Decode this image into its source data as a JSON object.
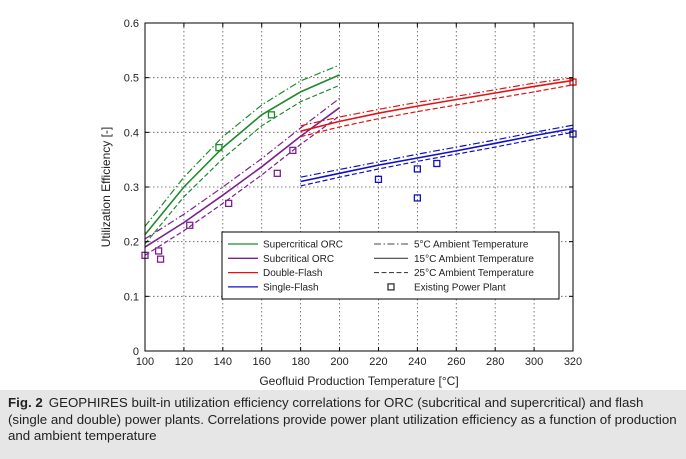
{
  "chart_data": {
    "type": "line",
    "xlabel": "Geofluid Production Temperature [°C]",
    "ylabel": "Utilization Efficiency [-]",
    "xlim": [
      100,
      320
    ],
    "ylim": [
      0,
      0.6
    ],
    "xticks": [
      "100",
      "120",
      "140",
      "160",
      "180",
      "200",
      "220",
      "240",
      "260",
      "280",
      "300",
      "320"
    ],
    "yticks": [
      "0",
      "0.1",
      "0.2",
      "0.3",
      "0.4",
      "0.5",
      "0.6"
    ],
    "grid": "dotted",
    "legend_position": "lower-center",
    "legend_left": [
      {
        "label": "Supercritical ORC",
        "color": "#1f8a2e"
      },
      {
        "label": "Subcritical ORC",
        "color": "#7d1f91"
      },
      {
        "label": "Double-Flash",
        "color": "#e01414"
      },
      {
        "label": "Single-Flash",
        "color": "#1010c8"
      }
    ],
    "legend_right": [
      {
        "label": "5°C Ambient Temperature",
        "style": "dashdot"
      },
      {
        "label": "15°C Ambient Temperature",
        "style": "solid"
      },
      {
        "label": "25°C Ambient Temperature",
        "style": "dashed"
      },
      {
        "label": "Existing Power Plant",
        "style": "marker"
      }
    ],
    "series": [
      {
        "name": "Supercritical ORC",
        "color": "#1f8a2e",
        "x": [
          100,
          120,
          140,
          160,
          180,
          200
        ],
        "y_5C": [
          0.228,
          0.318,
          0.392,
          0.45,
          0.494,
          0.523
        ],
        "y_15C": [
          0.213,
          0.3,
          0.372,
          0.432,
          0.474,
          0.505
        ],
        "y_25C": [
          0.196,
          0.282,
          0.352,
          0.412,
          0.456,
          0.486
        ]
      },
      {
        "name": "Subcritical ORC",
        "color": "#7d1f91",
        "x": [
          100,
          120,
          140,
          160,
          180,
          200
        ],
        "y_5C": [
          0.205,
          0.25,
          0.3,
          0.352,
          0.408,
          0.462
        ],
        "y_15C": [
          0.19,
          0.235,
          0.285,
          0.337,
          0.393,
          0.445
        ],
        "y_25C": [
          0.175,
          0.22,
          0.27,
          0.322,
          0.378,
          0.43
        ]
      },
      {
        "name": "Double-Flash",
        "color": "#e01414",
        "x": [
          180,
          200,
          220,
          240,
          260,
          280,
          300,
          320
        ],
        "y_5C": [
          0.412,
          0.428,
          0.442,
          0.455,
          0.466,
          0.478,
          0.49,
          0.5
        ],
        "y_15C": [
          0.402,
          0.42,
          0.435,
          0.448,
          0.46,
          0.472,
          0.484,
          0.495
        ],
        "y_25C": [
          0.392,
          0.41,
          0.425,
          0.438,
          0.45,
          0.462,
          0.474,
          0.487
        ]
      },
      {
        "name": "Single-Flash",
        "color": "#1010c8",
        "x": [
          180,
          200,
          220,
          240,
          260,
          280,
          300,
          320
        ],
        "y_5C": [
          0.318,
          0.332,
          0.346,
          0.36,
          0.373,
          0.386,
          0.4,
          0.413
        ],
        "y_15C": [
          0.31,
          0.325,
          0.34,
          0.353,
          0.366,
          0.38,
          0.394,
          0.407
        ],
        "y_25C": [
          0.302,
          0.318,
          0.333,
          0.347,
          0.36,
          0.373,
          0.387,
          0.4
        ]
      }
    ],
    "existing_plants": [
      {
        "color": "#1f8a2e",
        "points": [
          [
            138,
            0.372
          ],
          [
            165,
            0.432
          ]
        ]
      },
      {
        "color": "#7d1f91",
        "points": [
          [
            100,
            0.175
          ],
          [
            107,
            0.183
          ],
          [
            108,
            0.168
          ],
          [
            123,
            0.23
          ],
          [
            143,
            0.27
          ],
          [
            168,
            0.325
          ],
          [
            176,
            0.367
          ]
        ]
      },
      {
        "color": "#e01414",
        "points": [
          [
            320,
            0.492
          ]
        ]
      },
      {
        "color": "#1010c8",
        "points": [
          [
            220,
            0.314
          ],
          [
            240,
            0.333
          ],
          [
            240,
            0.28
          ],
          [
            250,
            0.343
          ],
          [
            320,
            0.397
          ]
        ]
      }
    ]
  },
  "caption": {
    "label": "Fig. 2",
    "text": "GEOPHIRES built-in utilization efficiency correlations for ORC (subcritical and supercritical) and flash (single and double) power plants. Correlations provide power plant utilization efficiency as a function of production and ambient temperature"
  }
}
